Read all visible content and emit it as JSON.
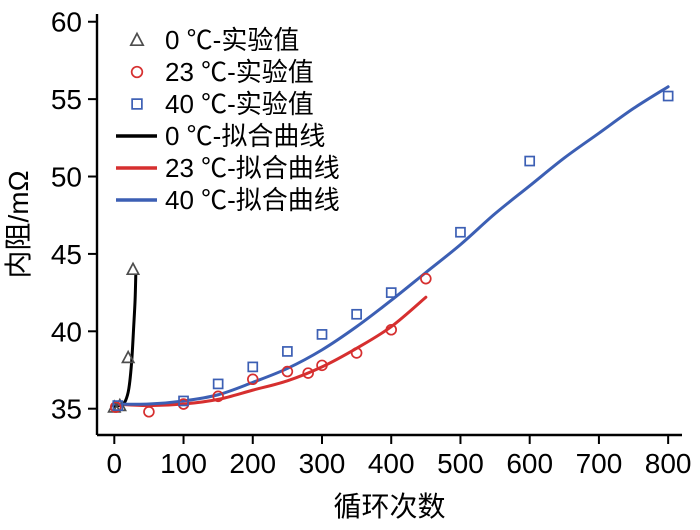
{
  "chart_data": {
    "type": "scatter",
    "title": "",
    "xlabel": "循环次数",
    "ylabel": "内阻/mΩ",
    "xlim": [
      -25,
      820
    ],
    "ylim": [
      33.3,
      60.5
    ],
    "xticks": [
      0,
      100,
      200,
      300,
      400,
      500,
      600,
      700,
      800
    ],
    "yticks": [
      35,
      40,
      45,
      50,
      55,
      60
    ],
    "grid": false,
    "legend_position": "top-left",
    "colors": {
      "black": "#000000",
      "gray_marker": "#4d4d4d",
      "red": "#d62f2f",
      "blue": "#3c5fb4"
    },
    "series": [
      {
        "name": "0 ℃-实验值",
        "type": "scatter",
        "marker": "triangle",
        "color": "#4d4d4d",
        "points": [
          [
            0,
            35.1
          ],
          [
            8,
            35.2
          ],
          [
            20,
            38.3
          ],
          [
            27,
            44.0
          ]
        ]
      },
      {
        "name": "23 ℃-实验值",
        "type": "scatter",
        "marker": "circle",
        "color": "#d62f2f",
        "points": [
          [
            2,
            35.1
          ],
          [
            50,
            34.8
          ],
          [
            100,
            35.3
          ],
          [
            150,
            35.8
          ],
          [
            200,
            36.9
          ],
          [
            250,
            37.4
          ],
          [
            280,
            37.3
          ],
          [
            300,
            37.8
          ],
          [
            350,
            38.6
          ],
          [
            400,
            40.1
          ],
          [
            450,
            43.4
          ]
        ]
      },
      {
        "name": "40 ℃-实验值",
        "type": "scatter",
        "marker": "square",
        "color": "#3c5fb4",
        "points": [
          [
            5,
            35.2
          ],
          [
            100,
            35.5
          ],
          [
            150,
            36.6
          ],
          [
            200,
            37.7
          ],
          [
            250,
            38.7
          ],
          [
            300,
            39.8
          ],
          [
            350,
            41.1
          ],
          [
            400,
            42.5
          ],
          [
            500,
            46.4
          ],
          [
            600,
            51.0
          ],
          [
            800,
            55.2
          ]
        ]
      },
      {
        "name": "0 ℃-拟合曲线",
        "type": "line",
        "color": "#000000",
        "points": [
          [
            0,
            35.15
          ],
          [
            10,
            35.25
          ],
          [
            16,
            35.5
          ],
          [
            21,
            36.3
          ],
          [
            25,
            38.0
          ],
          [
            28,
            40.3
          ],
          [
            30,
            42.0
          ],
          [
            31,
            43.6
          ]
        ]
      },
      {
        "name": "23 ℃-拟合曲线",
        "type": "line",
        "color": "#d62f2f",
        "points": [
          [
            0,
            35.3
          ],
          [
            50,
            35.2
          ],
          [
            100,
            35.3
          ],
          [
            150,
            35.6
          ],
          [
            200,
            36.2
          ],
          [
            250,
            36.8
          ],
          [
            300,
            37.7
          ],
          [
            350,
            38.9
          ],
          [
            400,
            40.3
          ],
          [
            450,
            42.2
          ]
        ]
      },
      {
        "name": "40 ℃-拟合曲线",
        "type": "line",
        "color": "#3c5fb4",
        "points": [
          [
            0,
            35.3
          ],
          [
            50,
            35.3
          ],
          [
            100,
            35.5
          ],
          [
            150,
            35.9
          ],
          [
            200,
            36.7
          ],
          [
            250,
            37.6
          ],
          [
            300,
            38.8
          ],
          [
            350,
            40.3
          ],
          [
            400,
            42.0
          ],
          [
            450,
            43.8
          ],
          [
            500,
            45.6
          ],
          [
            550,
            47.6
          ],
          [
            600,
            49.4
          ],
          [
            650,
            51.2
          ],
          [
            700,
            52.8
          ],
          [
            750,
            54.4
          ],
          [
            800,
            55.8
          ]
        ]
      }
    ]
  }
}
